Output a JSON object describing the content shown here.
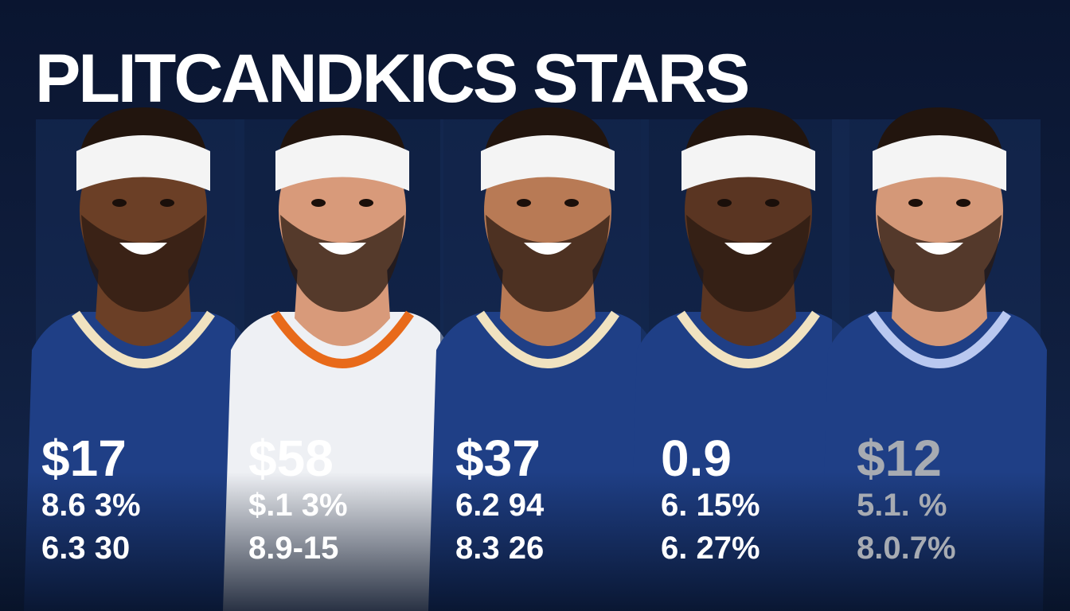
{
  "title": "PLITCANDKICS STARS",
  "players": [
    {
      "stats": [
        "$17",
        "8.6 3%",
        "6.3 30"
      ]
    },
    {
      "stats": [
        "$58",
        "$.1 3%",
        "8.9-15"
      ]
    },
    {
      "stats": [
        "$37",
        "6.2 94",
        "8.3 26"
      ]
    },
    {
      "stats": [
        "0.9",
        "6. 15%",
        "6. 27%"
      ]
    },
    {
      "stats": [
        "$12",
        "5.1. %",
        "8.0.7%"
      ]
    }
  ]
}
